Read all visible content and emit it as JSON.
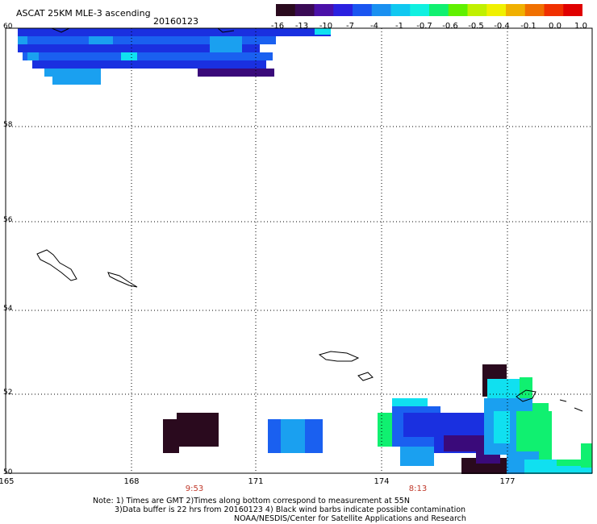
{
  "header": {
    "title": "ASCAT 25KM MLE-3 ascending",
    "date": "20160123"
  },
  "colorbar": {
    "labels": [
      "-16",
      "-13",
      "-10",
      "-7",
      "-4",
      "-1",
      "-0.7",
      "-0.6",
      "-0.5",
      "-0.4",
      "-0.1",
      "0.0",
      "1.0"
    ],
    "colors": [
      "#2a0a1e",
      "#3a0a55",
      "#4a10a8",
      "#2a20e0",
      "#1a55f0",
      "#1a90f0",
      "#10c8f0",
      "#10f0e0",
      "#10f070",
      "#60f000",
      "#c0f000",
      "#f0f000",
      "#f0b000",
      "#f07000",
      "#f03000",
      "#e00000"
    ]
  },
  "axes": {
    "lat_labels": [
      "60",
      "58",
      "56",
      "54",
      "52",
      "50"
    ],
    "lon_labels": [
      "165",
      "168",
      "171",
      "174",
      "177"
    ],
    "time_labels": [
      "9:53",
      "8:13"
    ]
  },
  "notes": {
    "line1": "Note: 1) Times are GMT 2)Times along bottom correspond to measurement at 55N",
    "line2": "3)Data buffer is 22 hrs from 20160123 4) Black wind barbs indicate possible contamination",
    "line3": "NOAA/NESDIS/Center for Satellite Applications and Research"
  },
  "colors": {
    "deep": "#2a0a1e",
    "purple": "#3a0a7a",
    "blue": "#1a30e0",
    "midblue": "#1a60f0",
    "skyblue": "#1aa0f0",
    "cyan": "#10e0f0",
    "green": "#10f070",
    "grid": "#000000"
  }
}
